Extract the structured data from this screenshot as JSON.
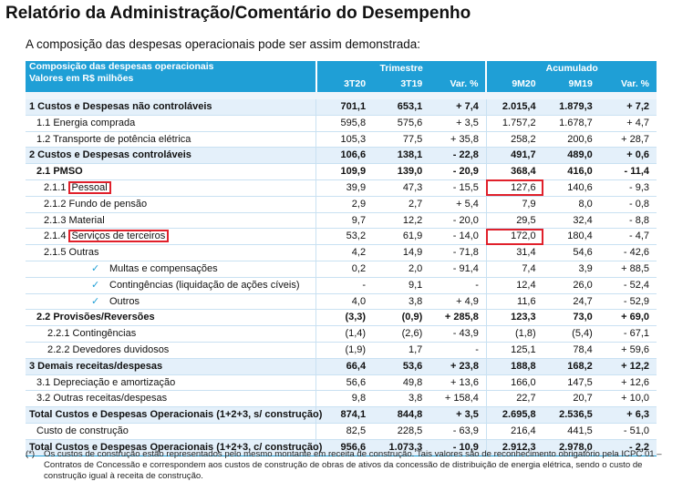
{
  "title": "Relatório da Administração/Comentário do Desempenho",
  "subtitle": "A composição das despesas operacionais pode ser assim demonstrada:",
  "header": {
    "label_line1": "Composição das despesas operacionais",
    "label_line2": "Valores em R$ milhões",
    "group1": "Trimestre",
    "group2": "Acumulado",
    "cols": [
      "3T20",
      "3T19",
      "Var. %",
      "9M20",
      "9M19",
      "Var. %"
    ]
  },
  "rows": [
    {
      "label": "1 Custos e Despesas não controláveis",
      "v": [
        "701,1",
        "653,1",
        "+ 7,4",
        "2.015,4",
        "1.879,3",
        "+ 7,2"
      ]
    },
    {
      "label": "1.1   Energia comprada",
      "v": [
        "595,8",
        "575,6",
        "+ 3,5",
        "1.757,2",
        "1.678,7",
        "+ 4,7"
      ]
    },
    {
      "label": "1.2   Transporte de potência elétrica",
      "v": [
        "105,3",
        "77,5",
        "+ 35,8",
        "258,2",
        "200,6",
        "+ 28,7"
      ]
    },
    {
      "label": "2  Custos e Despesas controláveis",
      "v": [
        "106,6",
        "138,1",
        "- 22,8",
        "491,7",
        "489,0",
        "+ 0,6"
      ]
    },
    {
      "label": "2.1 PMSO",
      "v": [
        "109,9",
        "139,0",
        "- 20,9",
        "368,4",
        "416,0",
        "- 11,4"
      ]
    },
    {
      "num": "2.1.1",
      "label": "Pessoal",
      "v": [
        "39,9",
        "47,3",
        "- 15,5",
        "127,6",
        "140,6",
        "- 9,3"
      ]
    },
    {
      "label": "2.1.2  Fundo de pensão",
      "v": [
        "2,9",
        "2,7",
        "+ 5,4",
        "7,9",
        "8,0",
        "- 0,8"
      ]
    },
    {
      "label": "2.1.3  Material",
      "v": [
        "9,7",
        "12,2",
        "- 20,0",
        "29,5",
        "32,4",
        "- 8,8"
      ]
    },
    {
      "num": "2.1.4",
      "label": "Serviços de terceiros",
      "v": [
        "53,2",
        "61,9",
        "- 14,0",
        "172,0",
        "180,4",
        "- 4,7"
      ]
    },
    {
      "label": "2.1.5  Outras",
      "v": [
        "4,2",
        "14,9",
        "- 71,8",
        "31,4",
        "54,6",
        "- 42,6"
      ]
    },
    {
      "label": "Multas e compensações",
      "v": [
        "0,2",
        "2,0",
        "- 91,4",
        "7,4",
        "3,9",
        "+ 88,5"
      ]
    },
    {
      "label": "Contingências (liquidação de ações cíveis)",
      "v": [
        "-",
        "9,1",
        "-",
        "12,4",
        "26,0",
        "- 52,4"
      ]
    },
    {
      "label": "Outros",
      "v": [
        "4,0",
        "3,8",
        "+ 4,9",
        "11,6",
        "24,7",
        "- 52,9"
      ]
    },
    {
      "label": "2.2  Provisões/Reversões",
      "v": [
        "(3,3)",
        "(0,9)",
        "+ 285,8",
        "123,3",
        "73,0",
        "+ 69,0"
      ]
    },
    {
      "label": "2.2.1 Contingências",
      "v": [
        "(1,4)",
        "(2,6)",
        "- 43,9",
        "(1,8)",
        "(5,4)",
        "- 67,1"
      ]
    },
    {
      "label": "2.2.2 Devedores duvidosos",
      "v": [
        "(1,9)",
        "1,7",
        "-",
        "125,1",
        "78,4",
        "+ 59,6"
      ]
    },
    {
      "label": "3 Demais receitas/despesas",
      "v": [
        "66,4",
        "53,6",
        "+ 23,8",
        "188,8",
        "168,2",
        "+ 12,2"
      ]
    },
    {
      "label": "3.1 Depreciação e amortização",
      "v": [
        "56,6",
        "49,8",
        "+ 13,6",
        "166,0",
        "147,5",
        "+ 12,6"
      ]
    },
    {
      "label": "3.2 Outras receitas/despesas",
      "v": [
        "9,8",
        "3,8",
        "+ 158,4",
        "22,7",
        "20,7",
        "+ 10,0"
      ]
    },
    {
      "label": "Total Custos e Despesas Operacionais (1+2+3, s/ construção)",
      "v": [
        "874,1",
        "844,8",
        "+ 3,5",
        "2.695,8",
        "2.536,5",
        "+ 6,3"
      ]
    },
    {
      "label": "Custo de construção",
      "v": [
        "82,5",
        "228,5",
        "- 63,9",
        "216,4",
        "441,5",
        "- 51,0"
      ]
    },
    {
      "label": "Total Custos e Despesas Operacionais (1+2+3, c/ construção)",
      "v": [
        "956,6",
        "1.073,3",
        "- 10,9",
        "2.912,3",
        "2.978,0",
        "- 2,2"
      ]
    }
  ],
  "check_icon": "checkmark-icon",
  "highlight_color": "#e0202b",
  "accent_color": "#1f9fd6",
  "footnote": {
    "mark": "(*)",
    "text": "Os custos de construção estão representados pelo mesmo montante em receita de construção. Tais valores são de reconhecimento obrigatório pela ICPC 01 – Contratos de Concessão e correspondem aos custos de construção de obras de ativos da concessão de distribuição de energia elétrica, sendo o custo de construção igual à receita de construção."
  }
}
